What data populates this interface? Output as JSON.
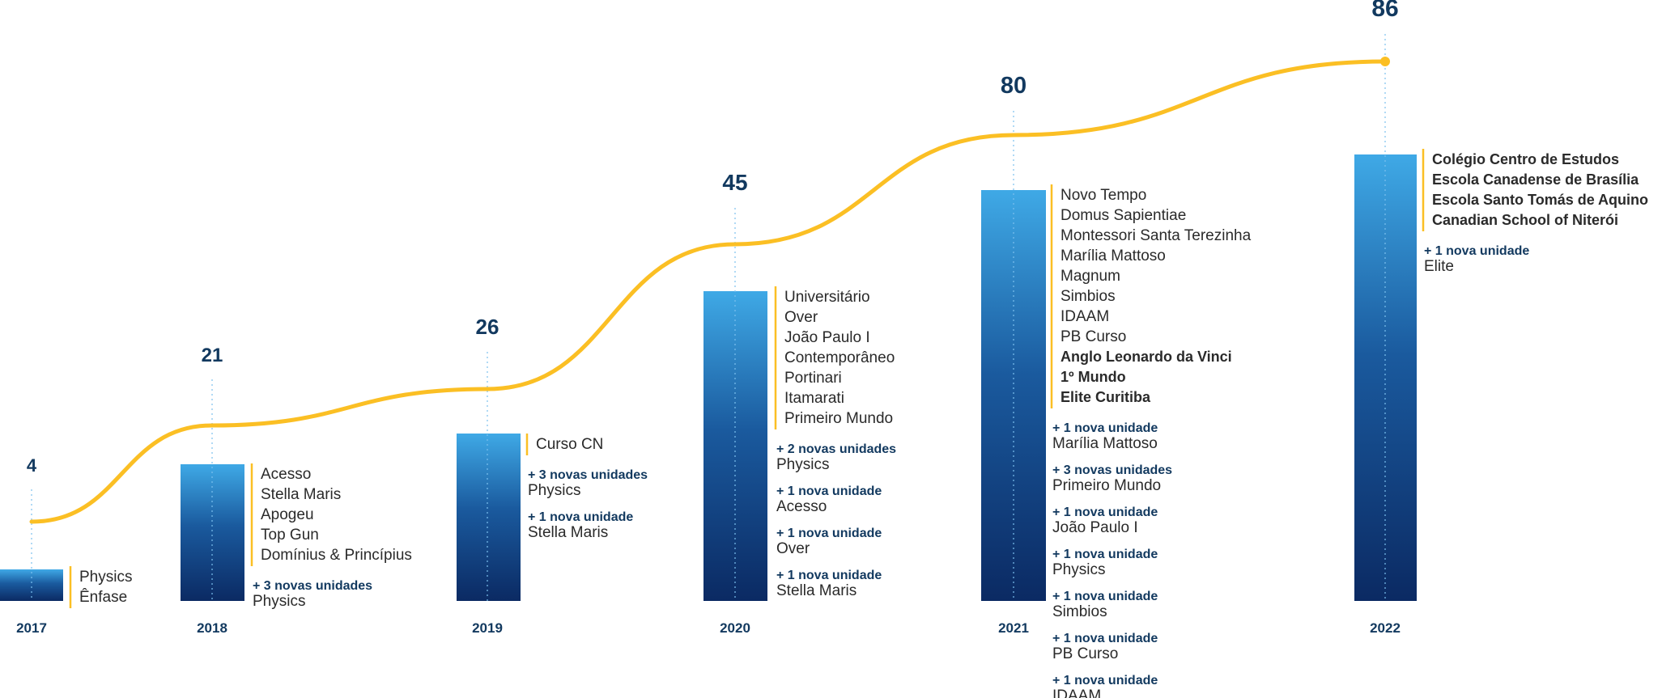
{
  "chart_data": {
    "type": "bar",
    "categories": [
      "2017",
      "2018",
      "2019",
      "2020",
      "2021",
      "2022"
    ],
    "values": [
      4,
      21,
      26,
      45,
      80,
      86
    ],
    "ylim": [
      0,
      90
    ],
    "grid": false,
    "colors": {
      "bar_bottom": "#0b2a63",
      "bar_top": "#3fa9e6",
      "line": "#fbbf24",
      "label": "#12395f",
      "marker": "#fbbf24"
    },
    "groups": [
      {
        "year": "2017",
        "count": "4",
        "schools": [
          "Physics",
          "Ênfase"
        ],
        "additions": []
      },
      {
        "year": "2018",
        "count": "21",
        "schools": [
          "Acesso",
          "Stella Maris",
          "Apogeu",
          "Top Gun",
          "Domínius & Princípius"
        ],
        "additions": [
          {
            "label": "+ 3 novas unidades",
            "name": "Physics"
          }
        ]
      },
      {
        "year": "2019",
        "count": "26",
        "schools": [
          "Curso CN"
        ],
        "additions": [
          {
            "label": "+ 3 novas unidades",
            "name": "Physics"
          },
          {
            "label": "+ 1 nova unidade",
            "name": "Stella Maris"
          }
        ]
      },
      {
        "year": "2020",
        "count": "45",
        "schools": [
          "Universitário",
          "Over",
          "João Paulo I",
          "Contemporâneo",
          "Portinari",
          "Itamarati",
          "Primeiro Mundo"
        ],
        "additions": [
          {
            "label": "+ 2 novas unidades",
            "name": "Physics"
          },
          {
            "label": "+ 1 nova unidade",
            "name": "Acesso"
          },
          {
            "label": "+ 1 nova unidade",
            "name": "Over"
          },
          {
            "label": "+ 1 nova unidade",
            "name": "Stella Maris"
          }
        ]
      },
      {
        "year": "2021",
        "count": "80",
        "schools": [
          "Novo Tempo",
          "Domus Sapientiae",
          "Montessori Santa Terezinha",
          "Marília Mattoso",
          "Magnum",
          "Simbios",
          "IDAAM",
          "PB Curso",
          "Anglo Leonardo da Vinci",
          "1º Mundo",
          "Elite Curitiba"
        ],
        "bold_from": 8,
        "additions": [
          {
            "label": "+ 1 nova unidade",
            "name": "Marília Mattoso"
          },
          {
            "label": "+ 3 novas unidades",
            "name": "Primeiro Mundo"
          },
          {
            "label": "+ 1 nova unidade",
            "name": "João Paulo I"
          },
          {
            "label": "+ 1 nova unidade",
            "name": "Physics"
          },
          {
            "label": "+ 1 nova unidade",
            "name": "Simbios"
          },
          {
            "label": "+ 1 nova unidade",
            "name": "PB Curso"
          },
          {
            "label": "+ 1 nova unidade",
            "name": "IDAAM"
          }
        ]
      },
      {
        "year": "2022",
        "count": "86",
        "schools": [
          "Colégio Centro de Estudos",
          "Escola Canadense de Brasília",
          "Escola Santo Tomás de Aquino",
          "Canadian School of Niterói"
        ],
        "bold_from": 0,
        "additions": [
          {
            "label": "+ 1 nova unidade",
            "name": "Elite"
          }
        ]
      }
    ]
  }
}
